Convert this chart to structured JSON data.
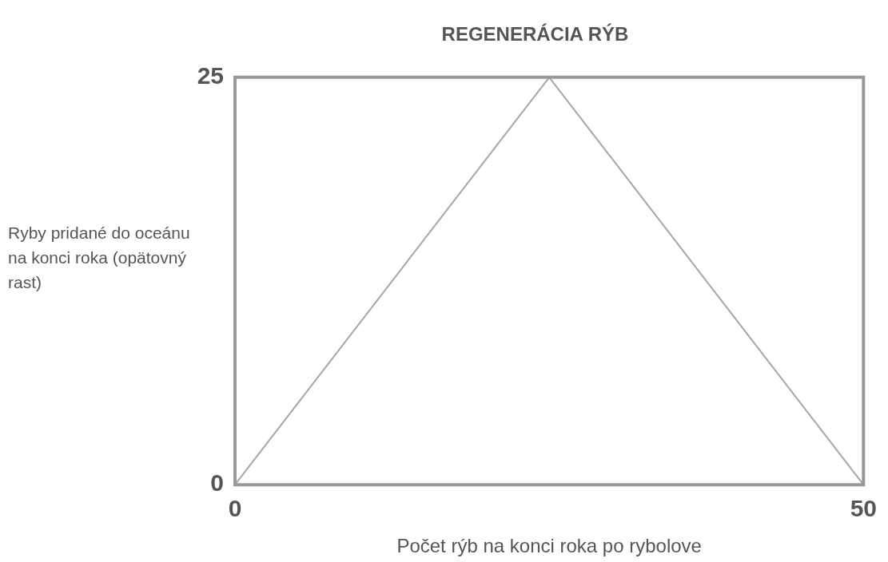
{
  "chart_data": {
    "type": "line",
    "title": "REGENERÁCIA RÝB",
    "xlabel": "Počet rýb na konci roka po rybolove",
    "ylabel": "Ryby pridané do oceánu na konci roka (opätovný rast)",
    "x": [
      0,
      25,
      50
    ],
    "series": [
      {
        "color": "#a6a6a6",
        "values": [
          0,
          25,
          0
        ]
      }
    ],
    "xlim": [
      0,
      50
    ],
    "ylim": [
      0,
      25
    ],
    "xticks": [
      0,
      50
    ],
    "yticks": [
      0,
      25
    ],
    "legend": false,
    "marker": "none",
    "line_style": "solid"
  }
}
